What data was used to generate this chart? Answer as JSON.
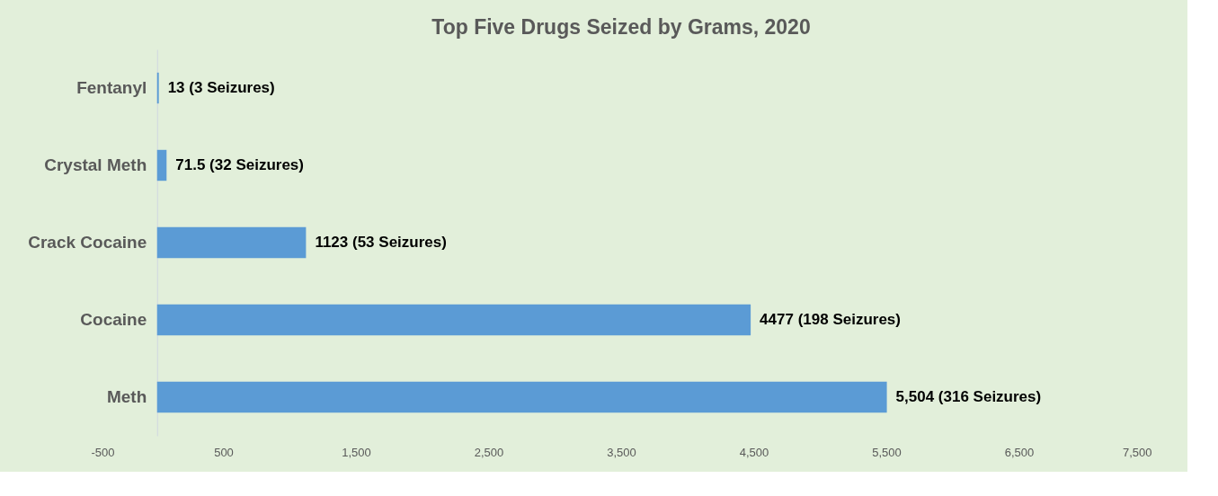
{
  "chart_data": {
    "type": "bar",
    "orientation": "horizontal",
    "title": "Top Five Drugs Seized by Grams,    2020",
    "categories": [
      "Fentanyl",
      "Crystal Meth",
      "Crack Cocaine",
      "Cocaine",
      "Meth"
    ],
    "values": [
      13,
      71.5,
      1123,
      4477,
      5504
    ],
    "value_labels": [
      "13 (3 Seizures)",
      "71.5  (32 Seizures)",
      "1123  (53 Seizures)",
      "4477  (198 Seizures)",
      "5,504  (316 Seizures)"
    ],
    "color": "#5b9bd5",
    "xlim": [
      -500,
      7500
    ],
    "xticks": [
      -500,
      500,
      {
        "value": 1500,
        "label": "1,500"
      },
      {
        "value": 2500,
        "label": "2,500"
      },
      {
        "value": 3500,
        "label": "3,500"
      },
      {
        "value": 4500,
        "label": "4,500"
      },
      {
        "value": 5500,
        "label": "5,500"
      },
      {
        "value": 6500,
        "label": "6,500"
      },
      {
        "value": 7500,
        "label": "7,500"
      }
    ],
    "grid": false
  }
}
